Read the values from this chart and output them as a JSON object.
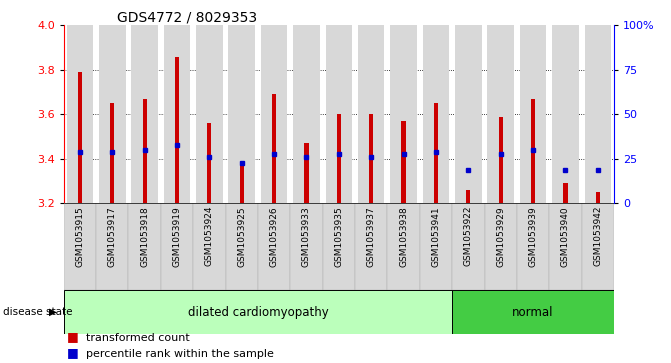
{
  "title": "GDS4772 / 8029353",
  "samples": [
    "GSM1053915",
    "GSM1053917",
    "GSM1053918",
    "GSM1053919",
    "GSM1053924",
    "GSM1053925",
    "GSM1053926",
    "GSM1053933",
    "GSM1053935",
    "GSM1053937",
    "GSM1053938",
    "GSM1053941",
    "GSM1053922",
    "GSM1053929",
    "GSM1053939",
    "GSM1053940",
    "GSM1053942"
  ],
  "bar_tops": [
    3.79,
    3.65,
    3.67,
    3.86,
    3.56,
    3.38,
    3.69,
    3.47,
    3.6,
    3.6,
    3.57,
    3.65,
    3.26,
    3.59,
    3.67,
    3.29,
    3.25
  ],
  "bar_bottom": 3.2,
  "percentile_vals": [
    3.43,
    3.43,
    3.44,
    3.46,
    3.41,
    3.38,
    3.42,
    3.41,
    3.42,
    3.41,
    3.42,
    3.43,
    3.35,
    3.42,
    3.44,
    3.35,
    3.35
  ],
  "disease_groups": [
    {
      "label": "dilated cardiomyopathy",
      "start": 0,
      "end": 12,
      "color": "#bbffbb"
    },
    {
      "label": "normal",
      "start": 12,
      "end": 17,
      "color": "#44cc44"
    }
  ],
  "bar_color": "#cc0000",
  "percentile_color": "#0000cc",
  "ylim_left": [
    3.2,
    4.0
  ],
  "ylim_right": [
    0,
    100
  ],
  "yticks_left": [
    3.2,
    3.4,
    3.6,
    3.8,
    4.0
  ],
  "yticks_right": [
    0,
    25,
    50,
    75,
    100
  ],
  "ytick_labels_right": [
    "0",
    "25",
    "50",
    "75",
    "100%"
  ],
  "grid_vals": [
    3.4,
    3.6,
    3.8
  ],
  "bg_color": "#d8d8d8",
  "disease_label": "disease state",
  "legend_items": [
    "transformed count",
    "percentile rank within the sample"
  ]
}
